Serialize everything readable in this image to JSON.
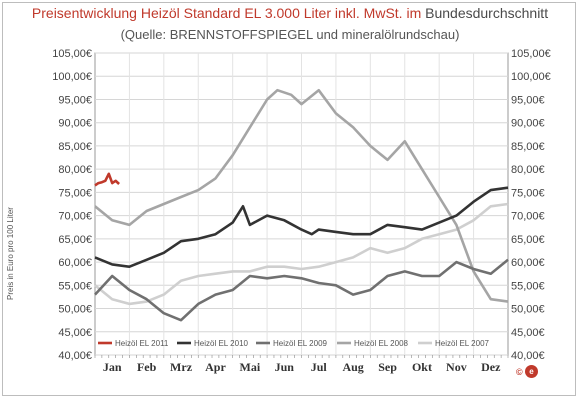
{
  "title": {
    "part1": "Preisentwicklung  Heizöl  Standard EL 3.000 Liter inkl.  MwSt. im",
    "part2": "Bundesdurchschnitt"
  },
  "subtitle": "(Quelle: BRENNSTOFFSPIEGEL  und  mineralölrundschau)",
  "logo_text": "©",
  "chart_data": {
    "type": "line",
    "title": "Preisentwicklung  Heizöl  Standard EL 3.000 Liter inkl.  MwSt. im Bundesdurchschnitt",
    "subtitle": "(Quelle: BRENNSTOFFSPIEGEL  und  mineralölrundschau)",
    "ylabel": "Preis in Euro pro 100 Liter",
    "xlabel": "",
    "ylim": [
      40,
      105
    ],
    "xlim": [
      0,
      12
    ],
    "y_ticks": [
      "40,00€",
      "45,00€",
      "50,00€",
      "55,00€",
      "60,00€",
      "65,00€",
      "70,00€",
      "75,00€",
      "80,00€",
      "85,00€",
      "90,00€",
      "95,00€",
      "100,00€",
      "105,00€"
    ],
    "y_tick_values": [
      40,
      45,
      50,
      55,
      60,
      65,
      70,
      75,
      80,
      85,
      90,
      95,
      100,
      105
    ],
    "x_tick_labels": [
      "Jan",
      "Feb",
      "Mrz",
      "Apr",
      "Mai",
      "Jun",
      "Jul",
      "Aug",
      "Sep",
      "Okt",
      "Nov",
      "Dez"
    ],
    "x_tick_positions": [
      0.5,
      1.5,
      2.5,
      3.5,
      4.5,
      5.5,
      6.5,
      7.5,
      8.5,
      9.5,
      10.5,
      11.5
    ],
    "grid": "both",
    "legend_position": "bottom",
    "series": [
      {
        "name": "Heizöl EL 2011",
        "color": "#c0392b",
        "x": [
          0,
          0.1,
          0.2,
          0.3,
          0.4,
          0.5,
          0.6,
          0.7
        ],
        "y": [
          76.5,
          77,
          77.2,
          77.5,
          79,
          77,
          77.5,
          76.8
        ]
      },
      {
        "name": "Heizöl EL 2010",
        "color": "#333333",
        "x": [
          0,
          0.5,
          1,
          1.5,
          2,
          2.5,
          3,
          3.5,
          4,
          4.3,
          4.5,
          5,
          5.5,
          6,
          6.3,
          6.5,
          7,
          7.5,
          8,
          8.5,
          9,
          9.5,
          10,
          10.5,
          11,
          11.5,
          12
        ],
        "y": [
          61,
          59.5,
          59,
          60.5,
          62,
          64.5,
          65,
          66,
          68.5,
          72,
          68,
          70,
          69,
          67,
          66,
          67,
          66.5,
          66,
          66,
          68,
          67.5,
          67,
          68.5,
          70,
          73,
          75.5,
          76
        ]
      },
      {
        "name": "Heizöl EL 2009",
        "color": "#707070",
        "x": [
          0,
          0.5,
          1,
          1.5,
          2,
          2.5,
          3,
          3.5,
          4,
          4.5,
          5,
          5.5,
          6,
          6.5,
          7,
          7.5,
          8,
          8.5,
          9,
          9.5,
          10,
          10.5,
          11,
          11.5,
          12
        ],
        "y": [
          53,
          57,
          54,
          52,
          49,
          47.5,
          51,
          53,
          54,
          57,
          56.5,
          57,
          56.5,
          55.5,
          55,
          53,
          54,
          57,
          58,
          57,
          57,
          60,
          58.5,
          57.5,
          60.5
        ]
      },
      {
        "name": "Heizöl EL 2008",
        "color": "#a5a5a5",
        "x": [
          0,
          0.5,
          1,
          1.5,
          2,
          2.5,
          3,
          3.5,
          4,
          4.5,
          5,
          5.3,
          5.7,
          6,
          6.5,
          7,
          7.5,
          8,
          8.5,
          9,
          9.5,
          10,
          10.5,
          11,
          11.5,
          12
        ],
        "y": [
          72,
          69,
          68,
          71,
          72.5,
          74,
          75.5,
          78,
          83,
          89,
          95,
          97,
          96,
          94,
          97,
          92,
          89,
          85,
          82,
          86,
          80,
          74,
          68,
          58,
          52,
          51.5
        ]
      },
      {
        "name": "Heizöl EL 2007",
        "color": "#cfcfcf",
        "x": [
          0,
          0.5,
          1,
          1.5,
          2,
          2.5,
          3,
          3.5,
          4,
          4.5,
          5,
          5.5,
          6,
          6.5,
          7,
          7.5,
          8,
          8.5,
          9,
          9.5,
          10,
          10.5,
          11,
          11.5,
          12
        ],
        "y": [
          55,
          52,
          51,
          51.5,
          53,
          56,
          57,
          57.5,
          58,
          58,
          59,
          59,
          58.5,
          59,
          60,
          61,
          63,
          62,
          63,
          65,
          66,
          67,
          69,
          72,
          72.5
        ]
      }
    ]
  }
}
